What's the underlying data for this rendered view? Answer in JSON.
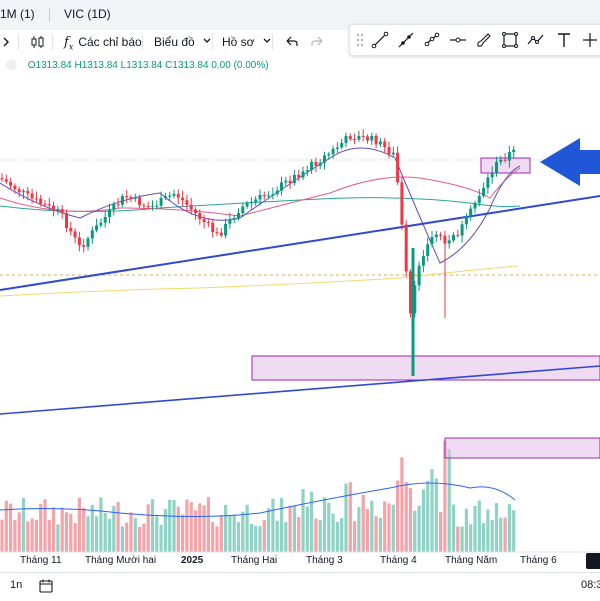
{
  "tabs": [
    {
      "label": "1M (1)"
    },
    {
      "label": "VIC (1D)"
    }
  ],
  "toolbar": {
    "indicators_label": "Các chỉ báo",
    "chart_type_label": "Biểu đồ",
    "profile_label": "Hồ sơ"
  },
  "legend": {
    "open": "O1313.84",
    "high": "H1313.84",
    "low": "L1313.84",
    "close": "C1313.84",
    "change": "0.00 (0.00%)"
  },
  "chart_data": {
    "type": "candlestick",
    "x_tick_labels": [
      "Tháng 11",
      "Tháng Mười hai",
      "2025",
      "Tháng Hai",
      "Tháng 3",
      "Tháng 4",
      "Tháng Năm",
      "Tháng 6"
    ],
    "last_ohlc": {
      "open": 1313.84,
      "high": 1313.84,
      "low": 1313.84,
      "close": 1313.84,
      "change": 0.0,
      "change_pct": 0.0
    },
    "colors": {
      "up": "#089981",
      "down": "#f23645",
      "trendline": "#2f49d1",
      "zone": "#e1bee7",
      "ma_fast": "#5d4fc4",
      "ma_mid": "#e35d8c",
      "ma_slow": "#26a69a",
      "ma_long": "#f5d76e"
    }
  },
  "bottom": {
    "range_label": "1n",
    "time_label": "08:3"
  }
}
